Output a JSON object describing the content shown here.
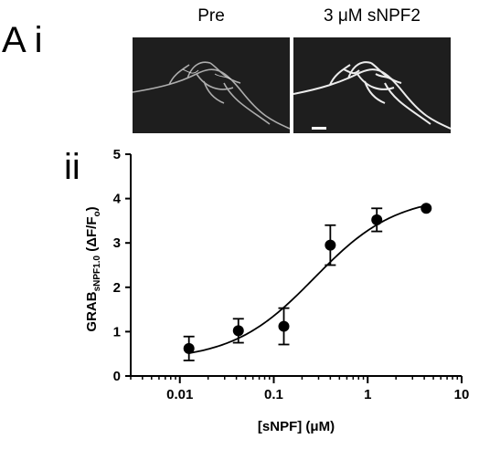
{
  "figure": {
    "panel_letter": "A",
    "sub_i": "i",
    "sub_ii": "ii",
    "image_titles": [
      "Pre",
      "3 μM sNPF2"
    ]
  },
  "chart_data": {
    "type": "scatter",
    "xscale": "log",
    "xlim": [
      0.003,
      10
    ],
    "ylim": [
      0,
      5
    ],
    "xticks": [
      0.01,
      0.1,
      1,
      10
    ],
    "xtick_labels": [
      "0.01",
      "0.1",
      "1",
      "10"
    ],
    "yticks": [
      0,
      1,
      2,
      3,
      4,
      5
    ],
    "ytick_labels": [
      "0",
      "1",
      "2",
      "3",
      "4",
      "5"
    ],
    "xlabel": "[sNPF] (μM)",
    "ylabel": {
      "main": "GRAB",
      "sub": "sNPF1.0",
      "rest": " (ΔF/F",
      "o": "o",
      "end": ")"
    },
    "series": [
      {
        "x": [
          0.0125,
          0.042,
          0.128,
          0.4,
          1.25,
          4.2
        ],
        "y": [
          0.62,
          1.02,
          1.12,
          2.95,
          3.52,
          3.78
        ],
        "err": [
          0.27,
          0.27,
          0.41,
          0.45,
          0.26,
          0.0
        ]
      }
    ],
    "fit": {
      "bottom": 0.35,
      "top": 4.07,
      "ec50": 0.27,
      "hill": 1.0,
      "x_from": 0.0125,
      "x_to": 4.2
    },
    "grid": false,
    "legend": "none"
  },
  "colors": {
    "point": "#000000",
    "axis": "#000000",
    "micro_bg": "#1e1e1e",
    "micro_fg": "#dcdcdc"
  }
}
